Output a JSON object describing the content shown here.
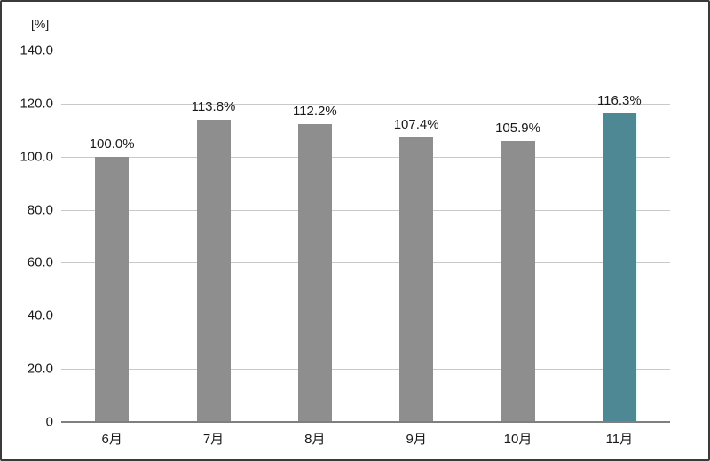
{
  "chart_data": {
    "type": "bar",
    "title": "",
    "unit_label": "[%]",
    "categories": [
      "6月",
      "7月",
      "8月",
      "9月",
      "10月",
      "11月"
    ],
    "values": [
      100.0,
      113.8,
      112.2,
      107.4,
      105.9,
      116.3
    ],
    "value_labels": [
      "100.0%",
      "113.8%",
      "112.2%",
      "107.4%",
      "105.9%",
      "116.3%"
    ],
    "xlabel": "",
    "ylabel": "",
    "ylim": [
      0,
      140
    ],
    "yticks": [
      {
        "value": 140,
        "label": "140.0"
      },
      {
        "value": 120,
        "label": "120.0"
      },
      {
        "value": 100,
        "label": "100.0"
      },
      {
        "value": 80,
        "label": "80.0"
      },
      {
        "value": 60,
        "label": "60.0"
      },
      {
        "value": 40,
        "label": "40.0"
      },
      {
        "value": 20,
        "label": "20.0"
      },
      {
        "value": 0,
        "label": "0"
      }
    ],
    "grid": true,
    "legend_position": "none",
    "highlight_index": 5,
    "colors": {
      "bar_default": "#8e8e8e",
      "bar_highlight": "#4d8894",
      "gridline": "#c9c9c9",
      "axis_line": "#7f7f7f",
      "text": "#1a1a1a",
      "border": "#3a3a3a",
      "background": "#ffffff"
    }
  }
}
